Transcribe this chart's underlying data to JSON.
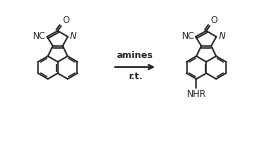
{
  "bg_color": "#ffffff",
  "line_color": "#222222",
  "text_color": "#222222",
  "arrow_label1": "amines",
  "arrow_label2": "r.t.",
  "label_nc": "NC",
  "label_n": "N",
  "label_o": "O",
  "label_nhr": "NHR",
  "figsize": [
    2.63,
    1.42
  ],
  "dpi": 100
}
